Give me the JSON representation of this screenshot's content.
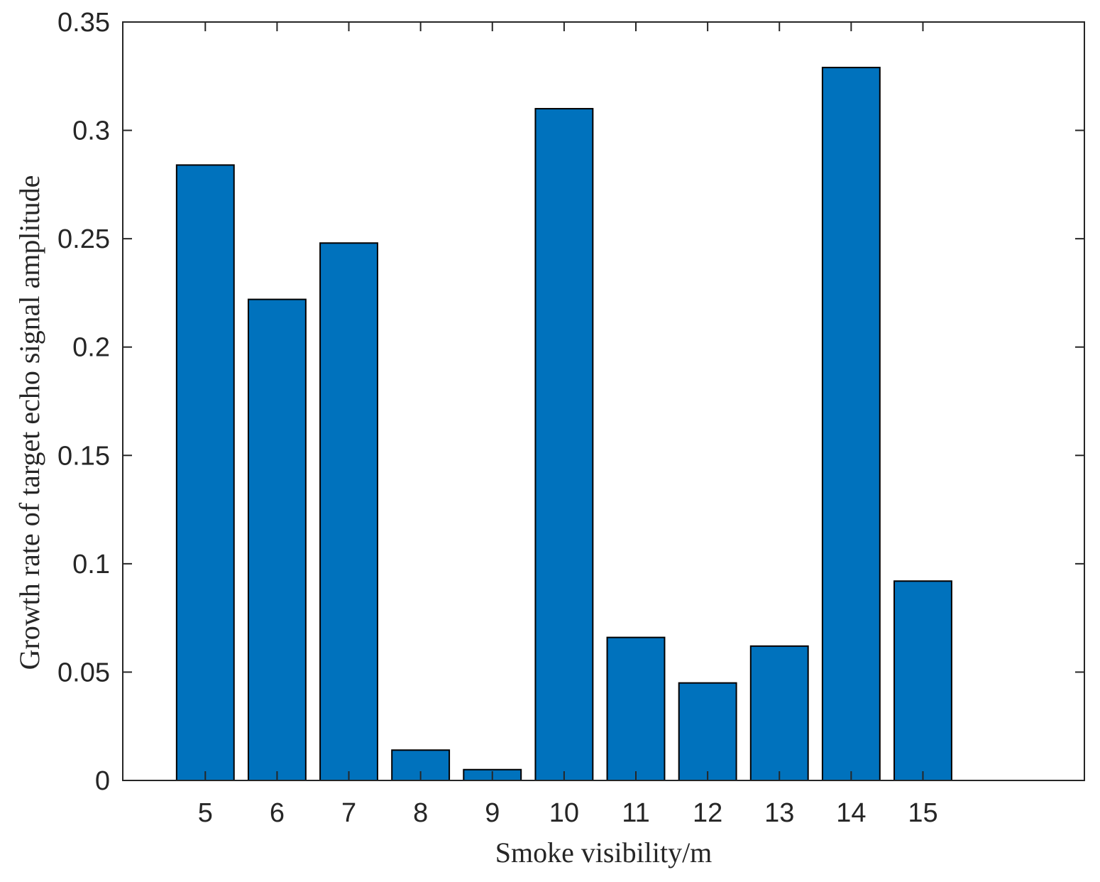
{
  "chart_data": {
    "type": "bar",
    "categories": [
      "5",
      "6",
      "7",
      "8",
      "9",
      "10",
      "11",
      "12",
      "13",
      "14",
      "15"
    ],
    "values": [
      0.284,
      0.222,
      0.248,
      0.014,
      0.005,
      0.31,
      0.066,
      0.045,
      0.062,
      0.329,
      0.092
    ],
    "xlabel": "Smoke visibility/m",
    "ylabel": "Growth rate of target echo signal amplitude",
    "ylim": [
      0,
      0.35
    ],
    "yticks": [
      "0",
      "0.05",
      "0.1",
      "0.15",
      "0.2",
      "0.25",
      "0.3",
      "0.35"
    ],
    "grid": false,
    "bar_color": "#0072BD",
    "bar_edge_color": "#000000"
  }
}
